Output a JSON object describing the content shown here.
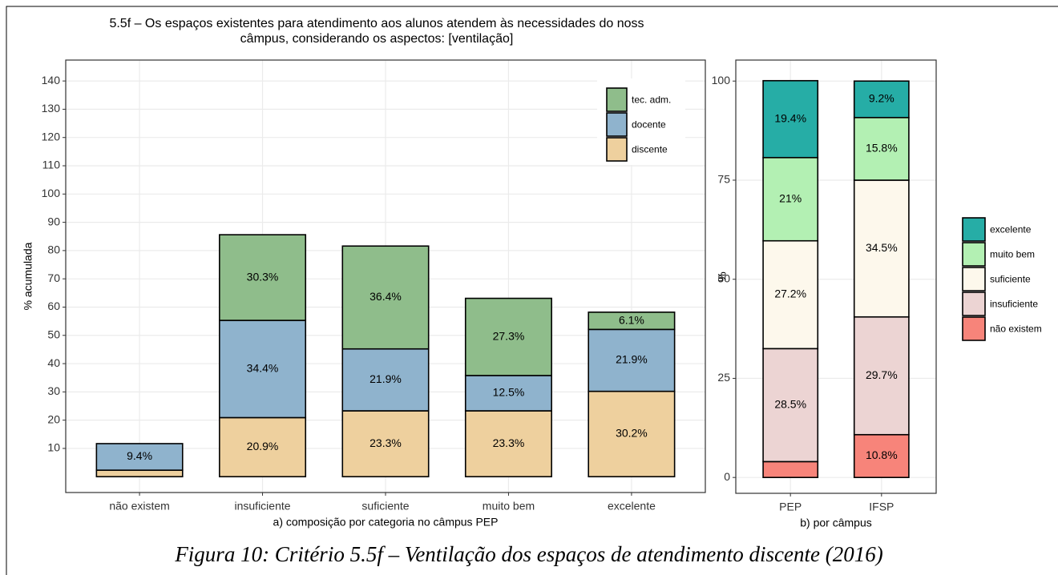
{
  "chart_data": [
    {
      "type": "stacked_bar",
      "title": [
        "5.5f – Os espaços existentes para atendimento aos alunos atendem às necessidades do noss",
        "câmpus, considerando os aspectos: [ventilação]"
      ],
      "y_label": "% acumulada",
      "x_label": "a) composição por categoria no câmpus PEP",
      "categories": [
        "não existem",
        "insuficiente",
        "suficiente",
        "muito bem",
        "excelente"
      ],
      "series": [
        {
          "name": "discente",
          "color": "#eed09e",
          "values": [
            2.3,
            20.9,
            23.3,
            23.3,
            30.2
          ],
          "value_labels": [
            null,
            "20.9%",
            "23.3%",
            "23.3%",
            "30.2%"
          ]
        },
        {
          "name": "docente",
          "color": "#8fb3cd",
          "values": [
            9.4,
            34.4,
            21.9,
            12.5,
            21.9
          ],
          "value_labels": [
            "9.4%",
            "34.4%",
            "21.9%",
            "12.5%",
            "21.9%"
          ]
        },
        {
          "name": "tec. adm.",
          "color": "#8fbd8b",
          "values": [
            0,
            30.3,
            36.4,
            27.3,
            6.1
          ],
          "value_labels": [
            null,
            "30.3%",
            "36.4%",
            "27.3%",
            "6.1%"
          ]
        }
      ],
      "ylim": [
        -5.6,
        147.4
      ],
      "yticks": [
        10,
        20,
        30,
        40,
        50,
        60,
        70,
        80,
        90,
        100,
        110,
        120,
        130,
        140
      ],
      "grid": true,
      "legend": "top-right"
    },
    {
      "type": "stacked_bar",
      "y_label": "%",
      "x_label": "b) por câmpus",
      "categories": [
        "PEP",
        "IFSP"
      ],
      "series": [
        {
          "name": "não existem",
          "color": "#f7847a",
          "values": [
            4.0,
            10.8
          ],
          "value_labels": [
            null,
            "10.8%"
          ]
        },
        {
          "name": "insuficiente",
          "color": "#ecd4d3",
          "values": [
            28.5,
            29.7
          ],
          "value_labels": [
            "28.5%",
            "29.7%"
          ]
        },
        {
          "name": "suficiente",
          "color": "#fdf8ec",
          "values": [
            27.2,
            34.5
          ],
          "value_labels": [
            "27.2%",
            "34.5%"
          ]
        },
        {
          "name": "muito bem",
          "color": "#b3f0b3",
          "values": [
            21,
            15.8
          ],
          "value_labels": [
            "21%",
            "15.8%"
          ]
        },
        {
          "name": "excelente",
          "color": "#26ada6",
          "values": [
            19.4,
            9.2
          ],
          "value_labels": [
            "19.4%",
            "9.2%"
          ]
        }
      ],
      "ylim": [
        -4,
        105.3
      ],
      "yticks": [
        0,
        25,
        50,
        75,
        100
      ],
      "grid": true,
      "legend": "right"
    }
  ],
  "caption": "Figura 10: Critério 5.5f – Ventilação dos espaços de atendimento discente (2016)"
}
